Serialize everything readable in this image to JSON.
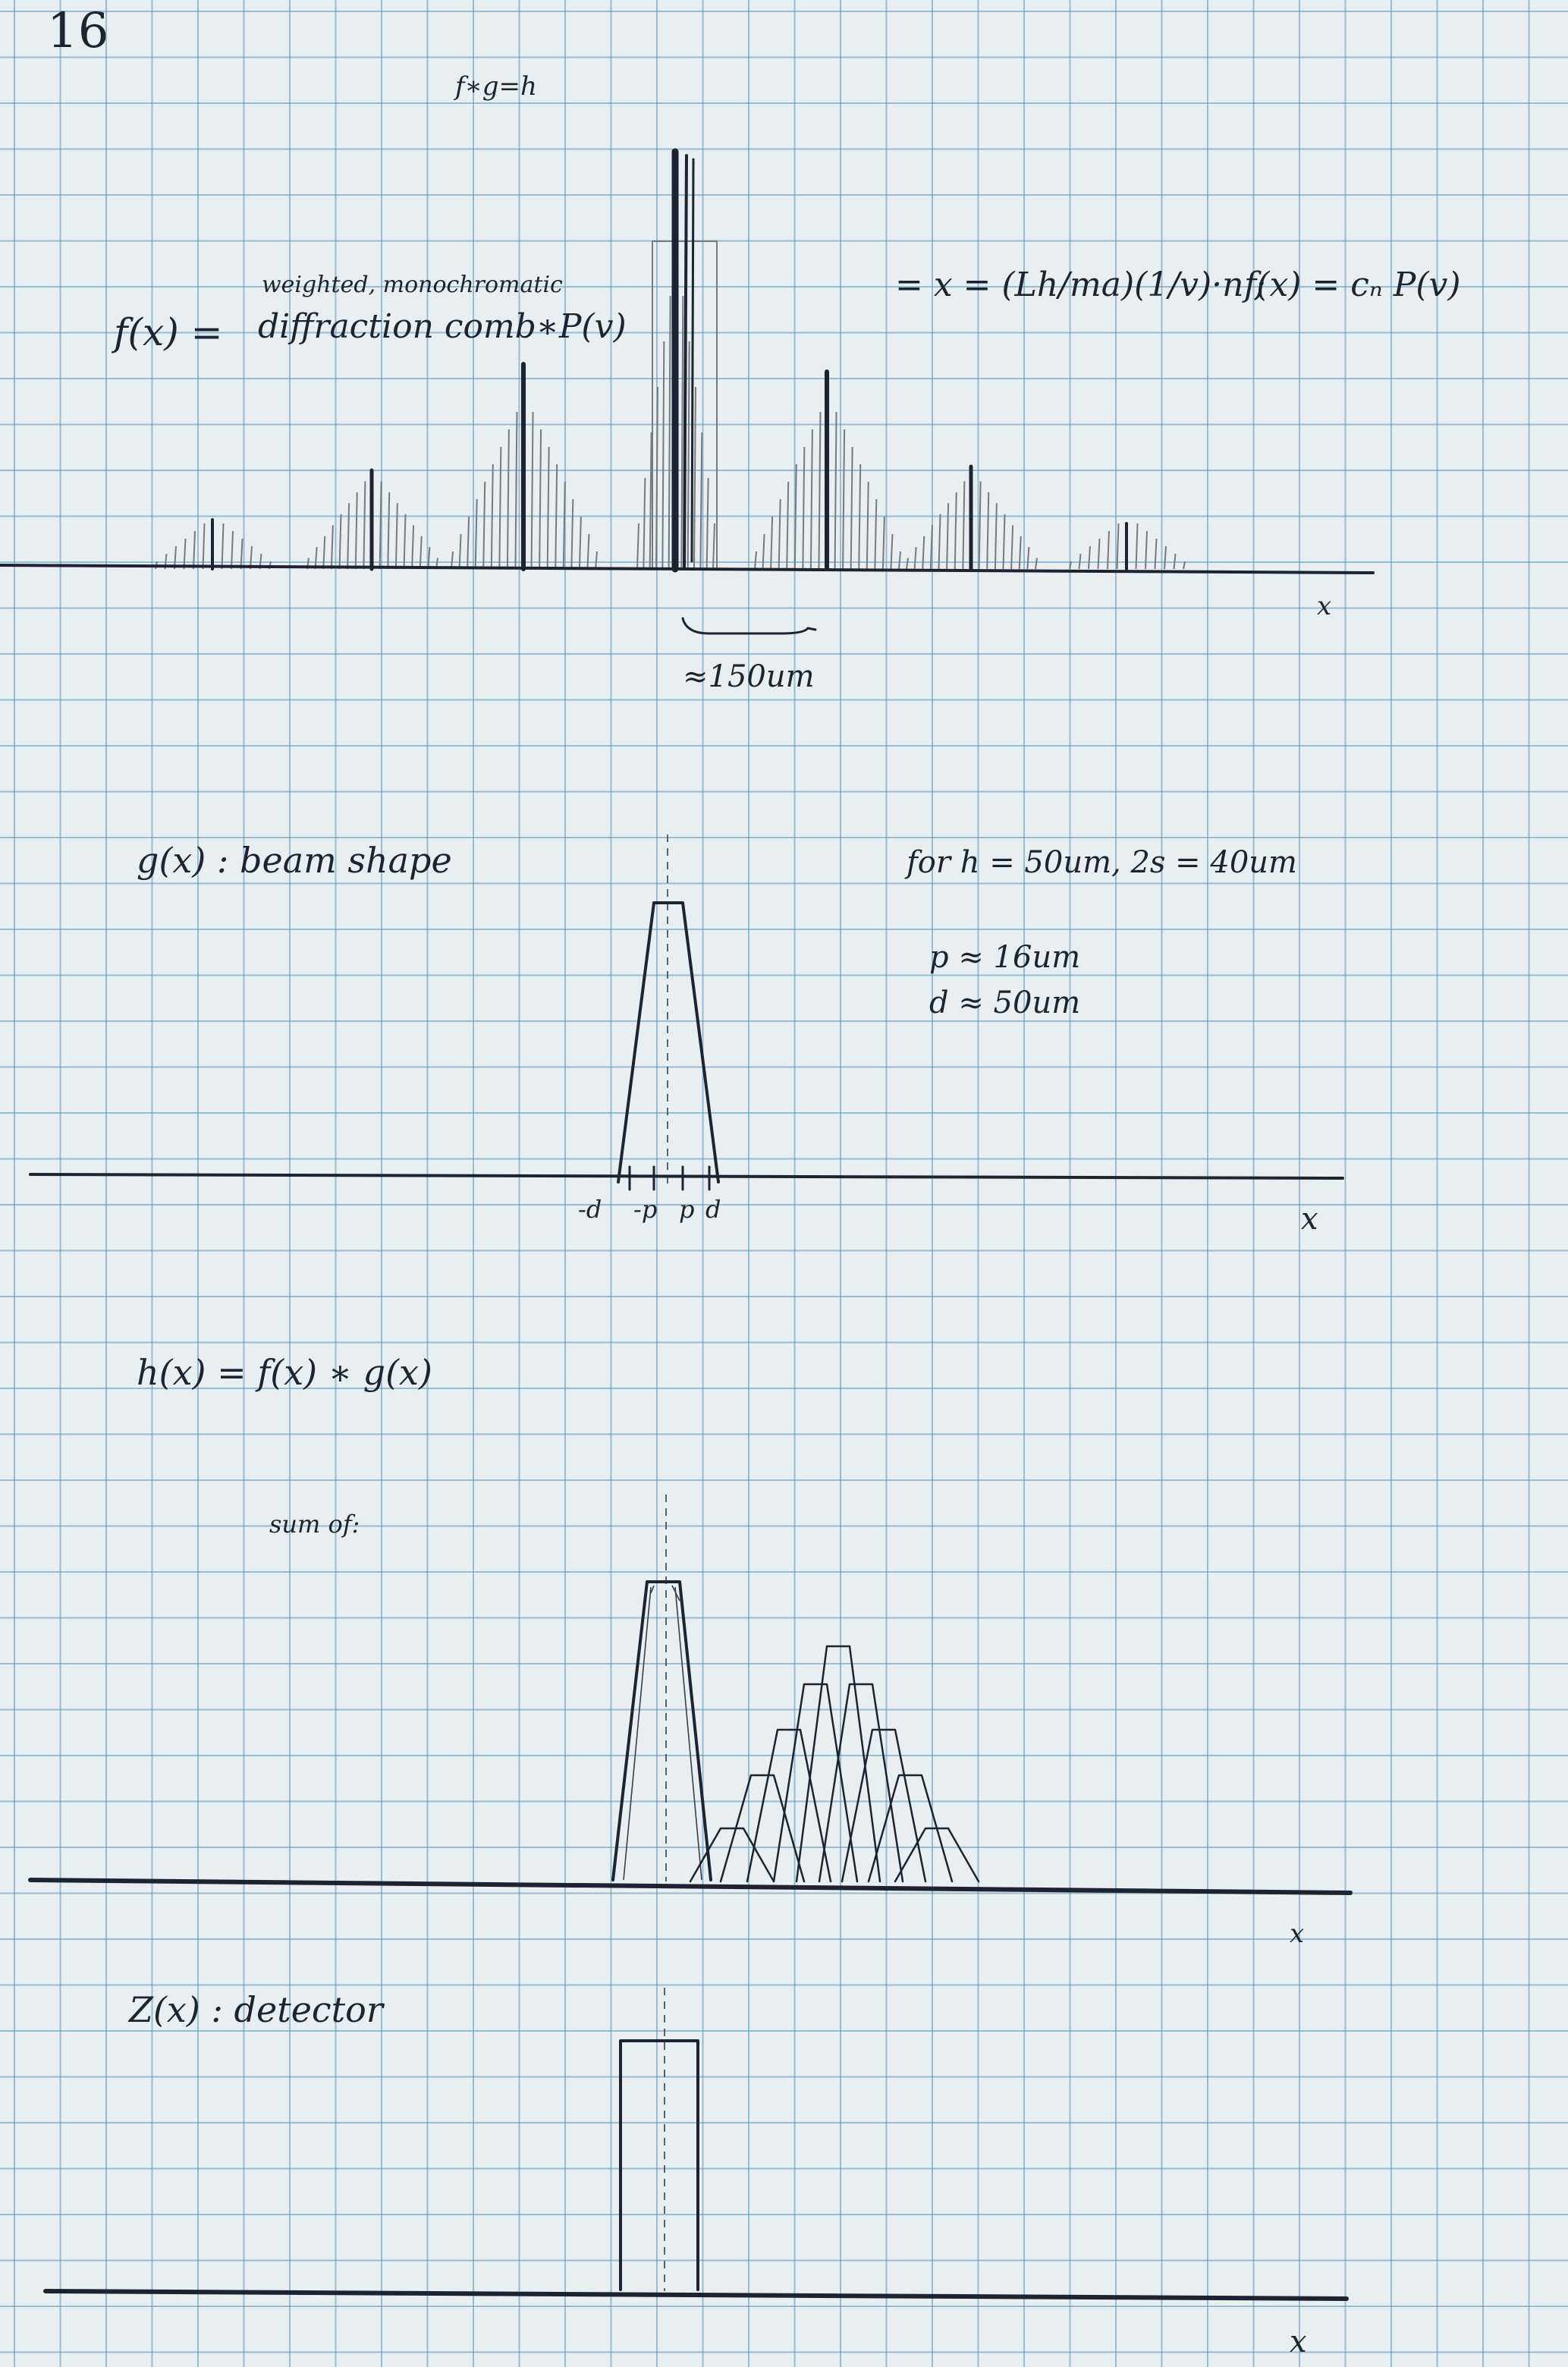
{
  "page_number": "16",
  "header_note": "f∗g=h",
  "panels": {
    "f": {
      "label": "f(x) =",
      "annotation_top": "weighted, monochromatic",
      "annotation_main": "diffraction comb∗P(v)",
      "formula_left": "= x = (Lh/ma)(1/v)·n ;",
      "formula_right": "f(x) = cₙ P(v)",
      "spacing_label": "≈150um",
      "axis_label": "x"
    },
    "g": {
      "label": "g(x) : beam shape",
      "condition": "for h = 50um, 2s = 40um",
      "p_value": "p ≈ 16um",
      "d_value": "d ≈ 50um",
      "tick_labels": [
        "-d",
        "-p",
        "p",
        "d"
      ],
      "axis_label": "x"
    },
    "h": {
      "label": "h(x) = f(x) ∗ g(x)",
      "note": "sum of:",
      "axis_label": "x"
    },
    "z": {
      "label": "Z(x) : detector",
      "axis_label": "x"
    }
  },
  "colors": {
    "ink": "#1d2331",
    "pencil": "#77797f",
    "grid": "#5096be",
    "paper": "#e9eef0"
  }
}
